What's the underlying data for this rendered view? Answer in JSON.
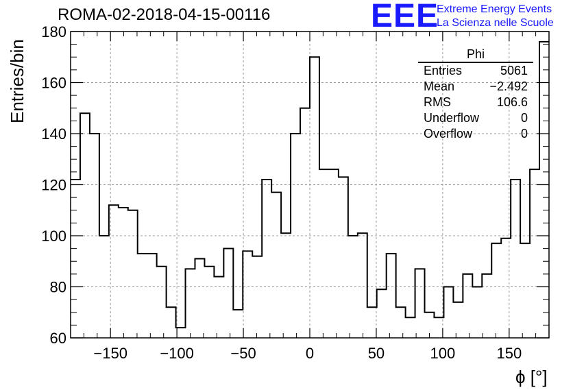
{
  "title": "ROMA-02-2018-04-15-00116",
  "logo": {
    "text": "EEE",
    "line1": "Extreme Energy Events",
    "line2": "La Scienza nelle Scuole",
    "color": "#1a1aff"
  },
  "stats": {
    "name": "Phi",
    "rows": [
      {
        "label": "Entries",
        "value": "5061"
      },
      {
        "label": "Mean",
        "value": "−2.492"
      },
      {
        "label": "RMS",
        "value": "106.6"
      },
      {
        "label": "Underflow",
        "value": "0"
      },
      {
        "label": "Overflow",
        "value": "0"
      }
    ]
  },
  "chart_data": {
    "type": "histogram",
    "title": "ROMA-02-2018-04-15-00116",
    "xlabel": "ϕ [°]",
    "ylabel": "Entries/bin",
    "xlim": [
      -180,
      180
    ],
    "ylim": [
      60,
      180
    ],
    "bin_width": 7.2,
    "bin_edges_start": -180,
    "grid": true,
    "x_ticks": [
      -150,
      -100,
      -50,
      0,
      50,
      100,
      150
    ],
    "y_ticks": [
      60,
      80,
      100,
      120,
      140,
      160,
      180
    ],
    "values": [
      122,
      148,
      140,
      100,
      112,
      111,
      110,
      93,
      93,
      88,
      72,
      64,
      87,
      91,
      88,
      84,
      95,
      71,
      94,
      92,
      122,
      117,
      101,
      140,
      150,
      170,
      126,
      126,
      123,
      100,
      101,
      72,
      79,
      93,
      72,
      68,
      87,
      70,
      68,
      80,
      74,
      85,
      80,
      85,
      97,
      99,
      122,
      97,
      126,
      176
    ]
  }
}
